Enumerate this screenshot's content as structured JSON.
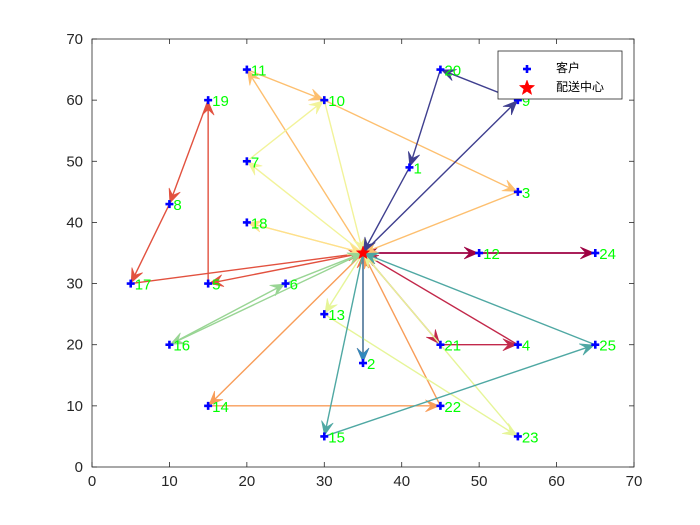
{
  "chart_data": {
    "type": "scatter",
    "title": "",
    "xlabel": "",
    "ylabel": "",
    "xlim": [
      0,
      70
    ],
    "ylim": [
      0,
      70
    ],
    "xticks": [
      0,
      10,
      20,
      30,
      40,
      50,
      60,
      70
    ],
    "yticks": [
      0,
      10,
      20,
      30,
      40,
      50,
      60,
      70
    ],
    "grid": false,
    "legend_position": "top-right",
    "legend": [
      {
        "label": "客户",
        "marker": "plus",
        "color": "#0000ff"
      },
      {
        "label": "配送中心",
        "marker": "star",
        "color": "#ff0000"
      }
    ],
    "depot": {
      "x": 35,
      "y": 35
    },
    "customers": [
      {
        "id": "1",
        "x": 41,
        "y": 49
      },
      {
        "id": "2",
        "x": 35,
        "y": 17
      },
      {
        "id": "3",
        "x": 55,
        "y": 45
      },
      {
        "id": "4",
        "x": 55,
        "y": 20
      },
      {
        "id": "5",
        "x": 15,
        "y": 30
      },
      {
        "id": "6",
        "x": 25,
        "y": 30
      },
      {
        "id": "7",
        "x": 20,
        "y": 50
      },
      {
        "id": "8",
        "x": 10,
        "y": 43
      },
      {
        "id": "9",
        "x": 55,
        "y": 60
      },
      {
        "id": "10",
        "x": 30,
        "y": 60
      },
      {
        "id": "11",
        "x": 20,
        "y": 65
      },
      {
        "id": "12",
        "x": 50,
        "y": 35
      },
      {
        "id": "13",
        "x": 30,
        "y": 25
      },
      {
        "id": "14",
        "x": 15,
        "y": 10
      },
      {
        "id": "15",
        "x": 30,
        "y": 5
      },
      {
        "id": "16",
        "x": 10,
        "y": 20
      },
      {
        "id": "17",
        "x": 5,
        "y": 30
      },
      {
        "id": "18",
        "x": 20,
        "y": 40
      },
      {
        "id": "19",
        "x": 15,
        "y": 60
      },
      {
        "id": "20",
        "x": 45,
        "y": 65
      },
      {
        "id": "21",
        "x": 45,
        "y": 20
      },
      {
        "id": "22",
        "x": 45,
        "y": 10
      },
      {
        "id": "23",
        "x": 55,
        "y": 5
      },
      {
        "id": "24",
        "x": 65,
        "y": 35
      },
      {
        "id": "25",
        "x": 65,
        "y": 20
      }
    ],
    "routes": [
      {
        "color": "#9e0142",
        "path": [
          "0",
          "12",
          "24",
          "0"
        ]
      },
      {
        "color": "#c2284a",
        "path": [
          "0",
          "21",
          "4",
          "0"
        ]
      },
      {
        "color": "#e2513f",
        "path": [
          "0",
          "5",
          "19",
          "8",
          "17",
          "0"
        ]
      },
      {
        "color": "#f46d43",
        "path": [
          "0",
          "2",
          "0"
        ]
      },
      {
        "color": "#f89d59",
        "path": [
          "0",
          "14",
          "22",
          "0"
        ]
      },
      {
        "color": "#fdbf6f",
        "path": [
          "0",
          "11",
          "10",
          "3",
          "0"
        ]
      },
      {
        "color": "#e6f598",
        "path": [
          "0",
          "13",
          "23",
          "0"
        ]
      },
      {
        "color": "#f2f39a",
        "path": [
          "0",
          "7",
          "10",
          "0"
        ]
      },
      {
        "color": "#fee08b",
        "path": [
          "0",
          "18",
          "0"
        ]
      },
      {
        "color": "#99d594",
        "path": [
          "0",
          "16",
          "6",
          "0"
        ]
      },
      {
        "color": "#3288bd",
        "path": [
          "0",
          "2"
        ]
      },
      {
        "color": "#4fa8a3",
        "path": [
          "0",
          "15",
          "25",
          "0"
        ]
      },
      {
        "color": "#3f3f8f",
        "path": [
          "0",
          "9",
          "20",
          "1",
          "0"
        ]
      }
    ]
  }
}
